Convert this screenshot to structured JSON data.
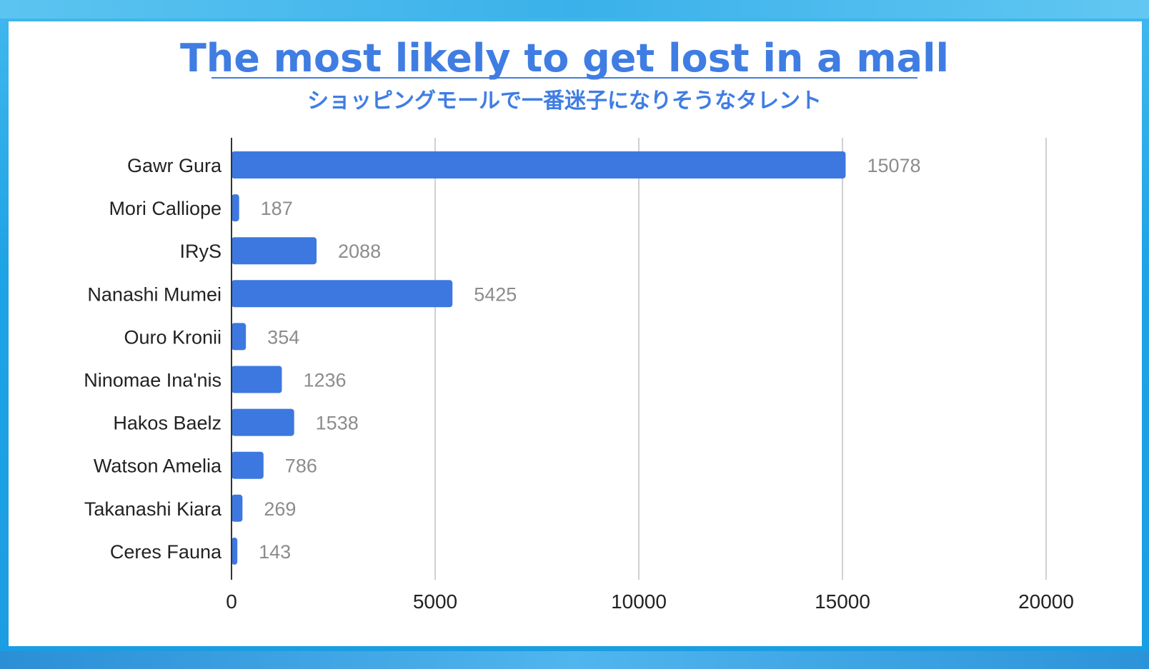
{
  "colors": {
    "bar": "#3d78e0",
    "title": "#3f7de3",
    "grid": "#d0d0d0",
    "axis": "#333333",
    "value_label": "#8c8c8c"
  },
  "chart_data": {
    "type": "bar",
    "orientation": "horizontal",
    "title": "The most likely to get lost in a mall",
    "subtitle": "ショッピングモールで一番迷子になりそうなタレント",
    "xlabel": "",
    "ylabel": "",
    "categories": [
      "Gawr Gura",
      "Mori Calliope",
      "IRyS",
      "Nanashi Mumei",
      "Ouro Kronii",
      "Ninomae Ina'nis",
      "Hakos Baelz",
      "Watson Amelia",
      "Takanashi Kiara",
      "Ceres Fauna"
    ],
    "values": [
      15078,
      187,
      2088,
      5425,
      354,
      1236,
      1538,
      786,
      269,
      143
    ],
    "xlim": [
      0,
      20000
    ],
    "xticks": [
      0,
      5000,
      10000,
      15000,
      20000
    ],
    "grid": true,
    "legend": "none",
    "data_labels": true
  }
}
